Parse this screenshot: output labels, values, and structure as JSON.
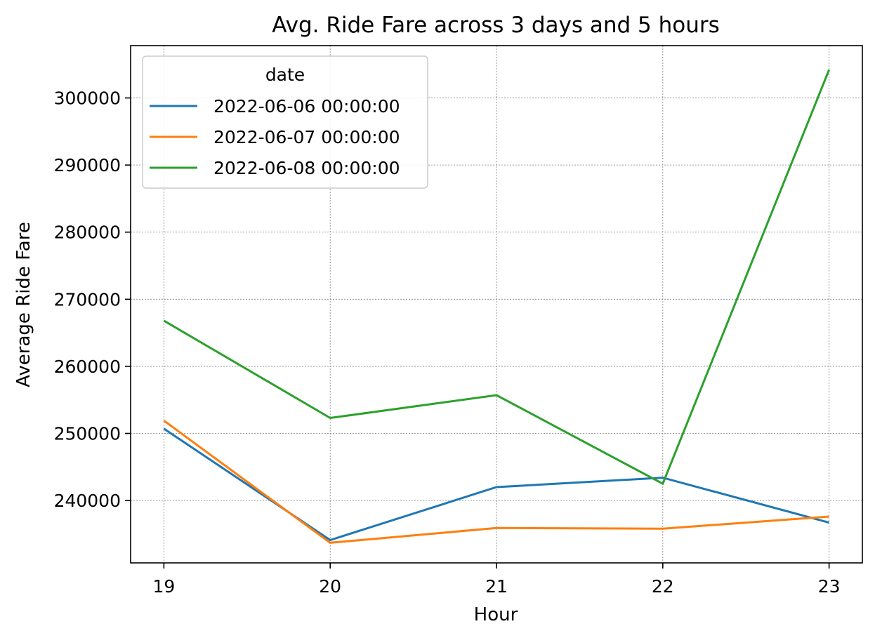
{
  "chart_data": {
    "type": "line",
    "title": "Avg. Ride Fare across 3 days and 5 hours",
    "xlabel": "Hour",
    "ylabel": "Average Ride Fare",
    "x": [
      19,
      20,
      21,
      22,
      23
    ],
    "x_tick_labels": [
      "19",
      "20",
      "21",
      "22",
      "23"
    ],
    "xlim": [
      18.8,
      23.2
    ],
    "y_ticks": [
      240000,
      250000,
      260000,
      270000,
      280000,
      290000,
      300000
    ],
    "y_tick_labels": [
      "240000",
      "250000",
      "260000",
      "270000",
      "280000",
      "290000",
      "300000"
    ],
    "ylim": [
      230700,
      307800
    ],
    "grid": true,
    "legend": {
      "title": "date",
      "position": "top-left"
    },
    "series": [
      {
        "name": "2022-06-06 00:00:00",
        "color": "#1f77b4",
        "values": [
          250700,
          234100,
          242000,
          243400,
          236700
        ]
      },
      {
        "name": "2022-06-07 00:00:00",
        "color": "#ff7f0e",
        "values": [
          251900,
          233700,
          235900,
          235800,
          237600
        ]
      },
      {
        "name": "2022-06-08 00:00:00",
        "color": "#2ca02c",
        "values": [
          266800,
          252300,
          255700,
          242500,
          304200
        ]
      }
    ]
  }
}
